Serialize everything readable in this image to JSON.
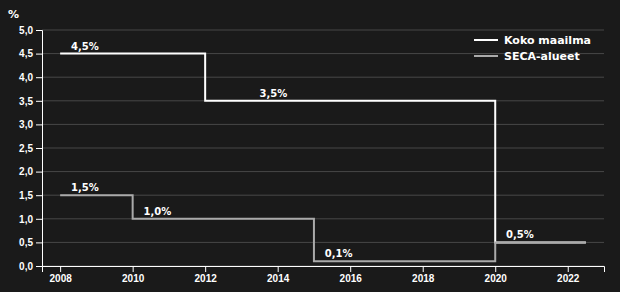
{
  "chart_data": {
    "type": "line",
    "ylabel": "%",
    "xlim": [
      2007.5,
      2023.0
    ],
    "xticks": [
      2008,
      2010,
      2012,
      2014,
      2016,
      2018,
      2020,
      2022
    ],
    "ylim": [
      0.0,
      5.0
    ],
    "yticks": [
      {
        "value": 0.0,
        "label": "0,0"
      },
      {
        "value": 0.5,
        "label": "0,5"
      },
      {
        "value": 1.0,
        "label": "1,0"
      },
      {
        "value": 1.5,
        "label": "1,5"
      },
      {
        "value": 2.0,
        "label": "2,0"
      },
      {
        "value": 2.5,
        "label": "2,5"
      },
      {
        "value": 3.0,
        "label": "3,0"
      },
      {
        "value": 3.5,
        "label": "3,5"
      },
      {
        "value": 4.0,
        "label": "4,0"
      },
      {
        "value": 4.5,
        "label": "4,5"
      },
      {
        "value": 5.0,
        "label": "5,0"
      }
    ],
    "grid": true,
    "legend": "upper right",
    "series": [
      {
        "name": "Koko maailma",
        "color": "#ffffff",
        "x": [
          2008,
          2012,
          2012,
          2020,
          2020,
          2022.5
        ],
        "values": [
          4.5,
          4.5,
          3.5,
          3.5,
          0.5,
          0.5
        ]
      },
      {
        "name": "SECA-alueet",
        "color": "#aaaaaa",
        "x": [
          2008,
          2010,
          2010,
          2015,
          2015,
          2020,
          2020,
          2022.5
        ],
        "values": [
          1.5,
          1.5,
          1.0,
          1.0,
          0.1,
          0.1,
          0.5,
          0.5
        ]
      }
    ],
    "annotations": [
      {
        "x": 2008.3,
        "y": 4.5,
        "text": "4,5%"
      },
      {
        "x": 2013.5,
        "y": 3.5,
        "text": "3,5%"
      },
      {
        "x": 2020.3,
        "y": 0.5,
        "text": "0,5%"
      },
      {
        "x": 2008.3,
        "y": 1.5,
        "text": "1,5%"
      },
      {
        "x": 2010.3,
        "y": 1.0,
        "text": "1,0%"
      },
      {
        "x": 2015.3,
        "y": 0.1,
        "text": "0,1%"
      }
    ]
  }
}
